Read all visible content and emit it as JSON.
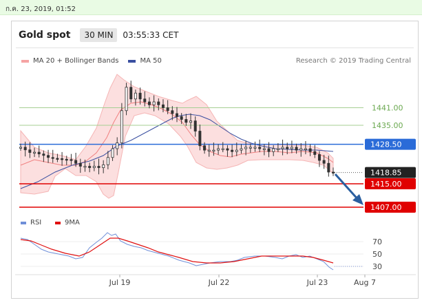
{
  "timestamp": "ก.ค. 23, 2019, 01:52",
  "header": {
    "instrument": "Gold spot",
    "timeframe": "30 MIN",
    "time": "03:55:33 CET"
  },
  "legend": [
    {
      "label": "MA 20 + Bollinger Bands",
      "color": "#f08080"
    },
    {
      "label": "MA 50",
      "color": "#3a4fa0"
    }
  ],
  "credit": "Research © 2019 Trading Central",
  "colors": {
    "green_level": "#6aa84f",
    "blue_level": "#2a6bd8",
    "red_level": "#e00000",
    "arrow": "#2a5fa0",
    "price_tag": "#222222"
  },
  "levels": [
    {
      "label": "1441.00",
      "value": 1441.0,
      "kind": "green"
    },
    {
      "label": "1435.00",
      "value": 1435.0,
      "kind": "green"
    },
    {
      "label": "1428.50",
      "value": 1428.5,
      "kind": "blue"
    },
    {
      "label": "1418.85",
      "value": 1418.85,
      "kind": "price"
    },
    {
      "label": "1415.00",
      "value": 1415.0,
      "kind": "red"
    },
    {
      "label": "1407.00",
      "value": 1407.0,
      "kind": "red"
    }
  ],
  "rsi": {
    "legend": [
      {
        "label": "RSI",
        "color": "#6f8fd8"
      },
      {
        "label": "9MA",
        "color": "#e01010"
      }
    ],
    "ticks": [
      "70",
      "50",
      "30"
    ]
  },
  "x_labels": [
    "Jul 19",
    "Jul 22",
    "Jul 23",
    "Aug 7"
  ],
  "chart_data": {
    "type": "line",
    "series": [
      {
        "name": "Gold spot",
        "y": [
          1427.5,
          1426.6,
          1425.7,
          1425.8,
          1425.2,
          1424.7,
          1424.0,
          1423.7,
          1423.6,
          1423.4,
          1423.3,
          1423.0,
          1422.0,
          1421.0,
          1421.0,
          1420.5,
          1421.0,
          1420.5,
          1421.5,
          1424.0,
          1427.0,
          1429.0,
          1440.0,
          1448.0,
          1444.0,
          1446.0,
          1444.0,
          1443.0,
          1442.0,
          1443.0,
          1442.0,
          1441.0,
          1440.0,
          1439.0,
          1438.0,
          1437.0,
          1436.0,
          1436.5,
          1433.0,
          1428.0,
          1426.5,
          1426.5,
          1426.5,
          1427.0,
          1427.0,
          1426.5,
          1426.0,
          1426.5,
          1427.0,
          1427.5,
          1427.5,
          1427.5,
          1427.0,
          1427.0,
          1426.0,
          1427.0,
          1427.0,
          1427.5,
          1427.0,
          1427.5,
          1426.5,
          1427.0,
          1427.0,
          1426.0,
          1425.0,
          1423.0,
          1422.0,
          1419.0,
          1418.85
        ]
      }
    ]
  }
}
